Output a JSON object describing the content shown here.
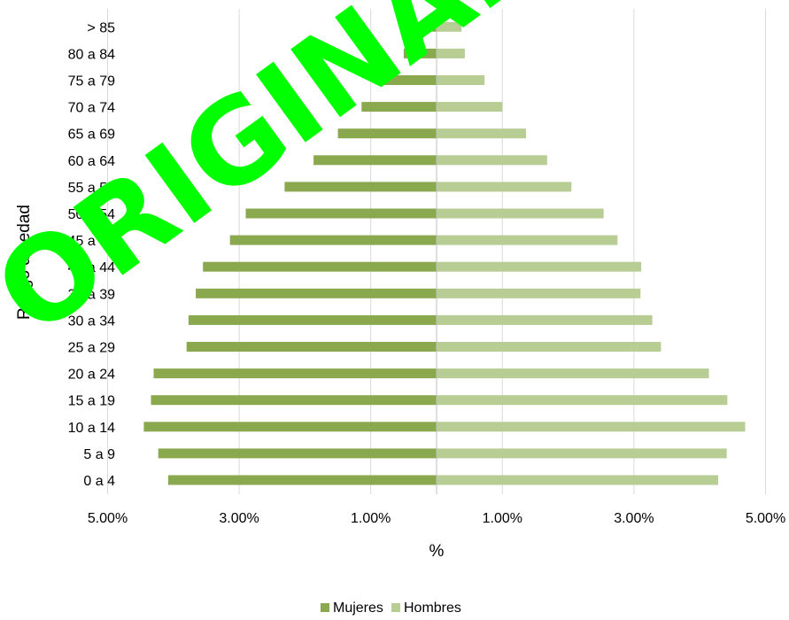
{
  "chart_data": {
    "type": "bar",
    "orientation": "horizontal",
    "categories": [
      "0 a 4",
      "5 a 9",
      "10 a 14",
      "15 a 19",
      "20 a 24",
      "25 a 29",
      "30 a 34",
      "35 a 39",
      "40 a 44",
      "45 a 49",
      "50 a 54",
      "55 a 59",
      "60 a 64",
      "65 a 69",
      "70 a 74",
      "75 a 79",
      "80 a 84",
      "> 85"
    ],
    "series": [
      {
        "name": "Mujeres",
        "color": "#8aa84e",
        "side": "left",
        "values": [
          4.08,
          4.23,
          4.45,
          4.34,
          4.3,
          3.8,
          3.77,
          3.66,
          3.55,
          3.14,
          2.9,
          2.31,
          1.87,
          1.5,
          1.14,
          0.8,
          0.5,
          0.48
        ]
      },
      {
        "name": "Hombres",
        "color": "#b7cd94",
        "side": "right",
        "values": [
          4.28,
          4.41,
          4.69,
          4.42,
          4.14,
          3.41,
          3.28,
          3.1,
          3.11,
          2.75,
          2.54,
          2.05,
          1.68,
          1.36,
          1.0,
          0.73,
          0.43,
          0.38
        ]
      }
    ],
    "x_ticks": [
      "5.00%",
      "3.00%",
      "1.00%",
      "1.00%",
      "3.00%",
      "5.00%"
    ],
    "x_tick_values": [
      -5,
      -3,
      -1,
      1,
      3,
      5
    ],
    "xlim": [
      -5,
      5
    ],
    "xlabel": "%",
    "ylabel": "Rango de edad",
    "grid": "vertical",
    "legend_position": "bottom"
  },
  "watermark": {
    "text": "ORIGINAL",
    "color": "#00ff00"
  }
}
